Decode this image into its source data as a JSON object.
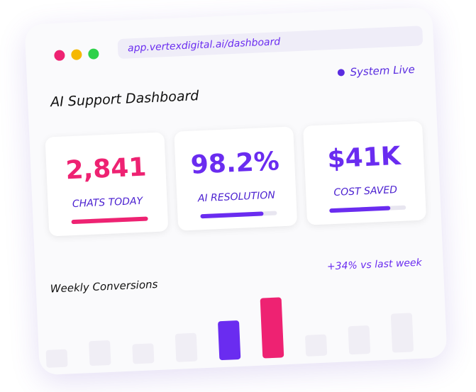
{
  "browser": {
    "url": "app.vertexdigital.ai/dashboard"
  },
  "header": {
    "title": "AI Support Dashboard",
    "status": "System Live"
  },
  "kpis": [
    {
      "value": "2,841",
      "label": "CHATS TODAY",
      "progress": 100,
      "color": "#ee2272"
    },
    {
      "value": "98.2%",
      "label": "AI RESOLUTION",
      "progress": 82,
      "color": "#6a2cf0"
    },
    {
      "value": "$41K",
      "label": "COST SAVED",
      "progress": 80,
      "color": "#6a2cf0"
    }
  ],
  "weekly": {
    "title": "Weekly Conversions",
    "change": "+34% vs last week",
    "values": [
      25,
      35,
      28,
      40,
      55,
      85,
      30,
      40,
      55
    ],
    "colors": [
      "#f0eef5",
      "#f0eef5",
      "#f0eef5",
      "#f0eef5",
      "#6a2cf0",
      "#ee2272",
      "#f0eef5",
      "#f0eef5",
      "#f0eef5"
    ]
  }
}
